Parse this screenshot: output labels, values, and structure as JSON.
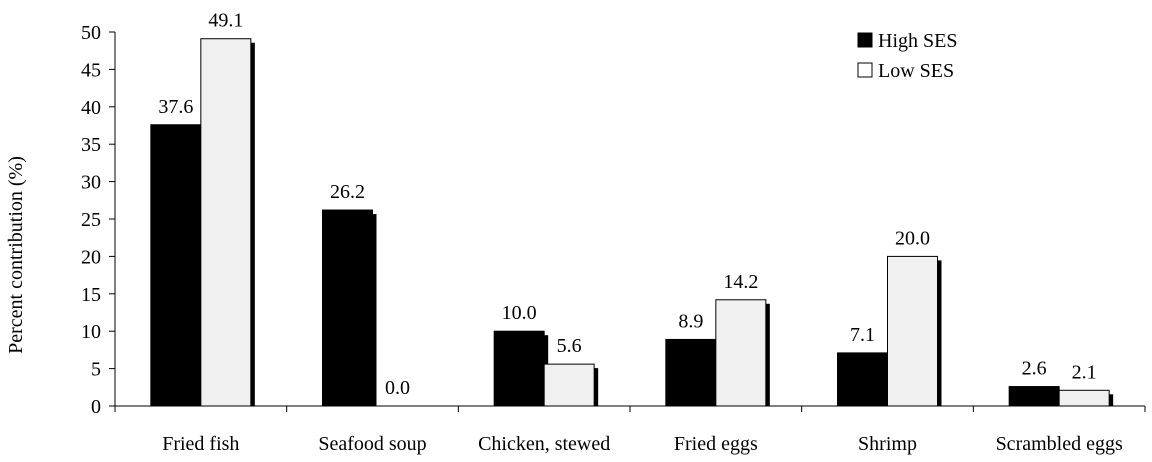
{
  "chart_data": {
    "type": "bar",
    "ylabel": "Percent contribution (%)",
    "ylim": [
      0,
      50
    ],
    "yticks": [
      0,
      5,
      10,
      15,
      20,
      25,
      30,
      35,
      40,
      45,
      50
    ],
    "grid": false,
    "legend_position": "top-right",
    "categories": [
      "Fried fish",
      "Seafood soup",
      "Chicken, stewed",
      "Fried eggs",
      "Shrimp",
      "Scrambled eggs"
    ],
    "series": [
      {
        "name": "High SES",
        "color": "#000000",
        "values": [
          37.6,
          26.2,
          10.0,
          8.9,
          7.1,
          2.6
        ],
        "labels": [
          "37.6",
          "26.2",
          "10.0",
          "8.9",
          "7.1",
          "2.6"
        ]
      },
      {
        "name": "Low SES",
        "color": "#f0f0f0",
        "values": [
          49.1,
          0.0,
          5.6,
          14.2,
          20.0,
          2.1
        ],
        "labels": [
          "49.1",
          "0.0",
          "5.6",
          "14.2",
          "20.0",
          "2.1"
        ]
      }
    ]
  }
}
